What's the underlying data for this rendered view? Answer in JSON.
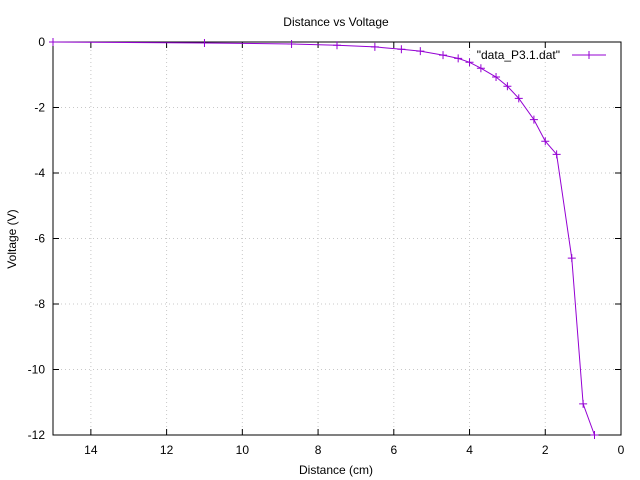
{
  "chart_data": {
    "type": "line",
    "title": "Distance vs Voltage",
    "xlabel": "Distance (cm)",
    "ylabel": "Voltage (V)",
    "xlim": [
      15,
      0
    ],
    "ylim": [
      -12,
      0
    ],
    "x_reversed": true,
    "grid": true,
    "legend_position": "top-right",
    "xticks": [
      14,
      12,
      10,
      8,
      6,
      4,
      2,
      0
    ],
    "yticks": [
      0,
      -2,
      -4,
      -6,
      -8,
      -10,
      -12
    ],
    "series": [
      {
        "name": "\"data_P3.1.dat\"",
        "color": "#9400d3",
        "marker": "plus",
        "x": [
          15,
          11,
          8.7,
          7.5,
          6.5,
          5.8,
          5.3,
          4.7,
          4.3,
          4.0,
          3.7,
          3.3,
          3.0,
          2.7,
          2.3,
          2.0,
          1.7,
          1.3,
          1.0,
          0.7
        ],
        "y": [
          0,
          -0.03,
          -0.06,
          -0.1,
          -0.15,
          -0.22,
          -0.28,
          -0.4,
          -0.5,
          -0.62,
          -0.8,
          -1.07,
          -1.35,
          -1.72,
          -2.37,
          -3.03,
          -3.43,
          -6.6,
          -11.05,
          -12.0
        ]
      }
    ]
  }
}
